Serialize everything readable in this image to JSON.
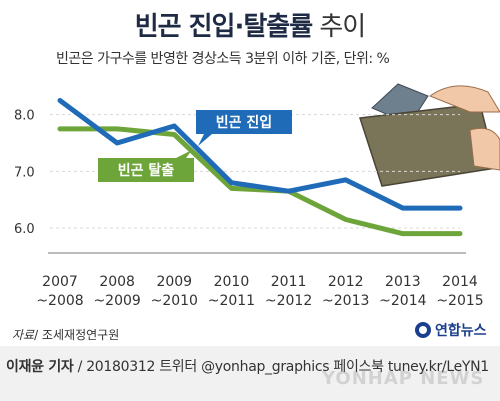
{
  "title": {
    "main": "빈곤 진입·탈출률",
    "suffix": " 추이"
  },
  "subtitle": "빈곤은 가구수를 반영한 경상소득 3분위 이하 기준, 단위: %",
  "source": {
    "prefix": "자료",
    "rest": "/ 조세재정연구원"
  },
  "credit": {
    "author": "이재윤 기자",
    "rest": " / 20180312   트위터 @yonhap_graphics  페이스북 tuney.kr/LeYN1"
  },
  "logo": {
    "text": "연합뉴스"
  },
  "watermark": "YONHAP NEWS",
  "colors": {
    "entry": "#1f6bb8",
    "exit": "#6ea53a"
  },
  "chart_data": {
    "type": "line",
    "title": "빈곤 진입·탈출률 추이",
    "x_top": [
      "2007",
      "2008",
      "2009",
      "2010",
      "2011",
      "2012",
      "2013",
      "2014"
    ],
    "x_bottom": [
      "~2008",
      "~2009",
      "~2010",
      "~2011",
      "~2012",
      "~2013",
      "~2014",
      "~2015"
    ],
    "y_ticks": [
      "8.0",
      "7.0",
      "6.0"
    ],
    "ylim": [
      5.7,
      8.4
    ],
    "series": [
      {
        "name": "빈곤 진입",
        "values": [
          8.25,
          7.5,
          7.8,
          6.8,
          6.65,
          6.85,
          6.35,
          6.35
        ]
      },
      {
        "name": "빈곤 탈출",
        "values": [
          7.75,
          7.75,
          7.65,
          6.7,
          6.65,
          6.15,
          5.9,
          5.9
        ]
      }
    ],
    "grid": true,
    "legend": "inline-labels"
  }
}
